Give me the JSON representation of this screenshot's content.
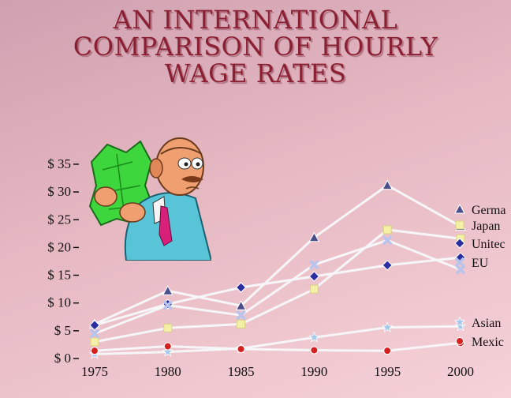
{
  "title_lines": [
    "AN INTERNATIONAL",
    "COMPARISON OF HOURLY",
    "WAGE RATES"
  ],
  "chart_data": {
    "type": "line",
    "title": "AN INTERNATIONAL COMPARISON OF HOURLY WAGE RATES",
    "x": [
      1975,
      1980,
      1985,
      1990,
      1995,
      2000
    ],
    "x_tick_labels": [
      "1975",
      "1980",
      "1985",
      "1990",
      "1995",
      "2000"
    ],
    "y_tick_labels": [
      "$ 35",
      "$ 30",
      "$ 25",
      "$ 20",
      "$ 15",
      "$ 10",
      "$ 5",
      "$ 0"
    ],
    "y_ticks": [
      35,
      30,
      25,
      20,
      15,
      10,
      5,
      0
    ],
    "ylim": [
      0,
      35
    ],
    "grid": false,
    "legend_placement": "right",
    "series": [
      {
        "name": "Germa",
        "marker": "triangle",
        "color": "#4a4f8c",
        "values": [
          6.2,
          12.2,
          9.5,
          21.8,
          31.2,
          23.8
        ]
      },
      {
        "name": "Japan",
        "marker": "square",
        "color": "#f4f0a8",
        "values": [
          3.0,
          5.5,
          6.2,
          12.5,
          23.2,
          21.6
        ]
      },
      {
        "name": "Unitec",
        "marker": "diamond",
        "color": "#2a2ea0",
        "values": [
          6.0,
          9.8,
          12.8,
          14.8,
          16.8,
          18.2
        ]
      },
      {
        "name": "EU",
        "marker": "x",
        "color": "#b8c4ec",
        "values": [
          4.5,
          9.6,
          7.8,
          16.9,
          21.3,
          16.0
        ]
      },
      {
        "name": "Asian",
        "marker": "star",
        "color": "#a6c8ea",
        "values": [
          0.8,
          1.2,
          1.8,
          3.8,
          5.6,
          5.8
        ]
      },
      {
        "name": "Mexic",
        "marker": "circle",
        "color": "#d42020",
        "values": [
          1.4,
          2.2,
          1.7,
          1.5,
          1.4,
          2.8
        ]
      }
    ]
  },
  "colors": {
    "title": "#8a2032",
    "background": "#e6b8c2",
    "lines": "#f4f4f6"
  }
}
